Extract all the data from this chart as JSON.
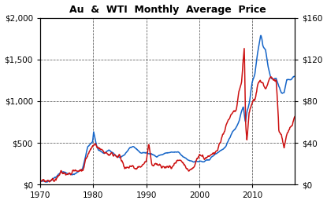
{
  "title": "Au  &  WTI  Monthly  Average  Price",
  "xlim": [
    1970,
    2018
  ],
  "ylim_left": [
    0,
    2000
  ],
  "ylim_right": [
    0,
    160
  ],
  "yticks_left": [
    0,
    500,
    1000,
    1500,
    2000
  ],
  "yticks_right": [
    0,
    40,
    80,
    120,
    160
  ],
  "xticks": [
    1970,
    1980,
    1990,
    2000,
    2010
  ],
  "au_color": "#1565c8",
  "wti_color": "#cc1111",
  "linewidth": 1.1,
  "background_color": "#ffffff",
  "grid_color": "#444444",
  "grid_style": "--",
  "grid_alpha": 0.9,
  "title_fontsize": 9,
  "tick_fontsize": 7.5
}
